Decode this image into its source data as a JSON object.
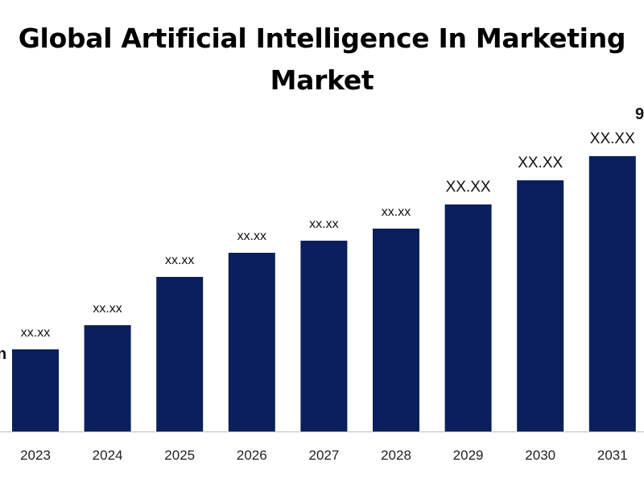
{
  "chart_data": {
    "type": "bar",
    "title": "Global Artificial Intelligence In Marketing Market",
    "xlabel": "",
    "ylabel": "",
    "categories": [
      "2023",
      "2024",
      "2025",
      "2026",
      "2027",
      "2028",
      "2029",
      "2030",
      "2031"
    ],
    "values": [
      10.2,
      13.2,
      19.2,
      22.2,
      23.7,
      25.2,
      28.2,
      31.2,
      34.2
    ],
    "data_labels": [
      "xx.xx",
      "xx.xx",
      "xx.xx",
      "xx.xx",
      "xx.xx",
      "xx.xx",
      "XX.XX",
      "XX.XX",
      "XX.XX"
    ],
    "ylim": [
      0,
      40
    ],
    "grid": false,
    "legend": "none",
    "bar_color": "#0a1f5c",
    "left_edge_fragment": "n",
    "right_edge_fragment": "9"
  }
}
